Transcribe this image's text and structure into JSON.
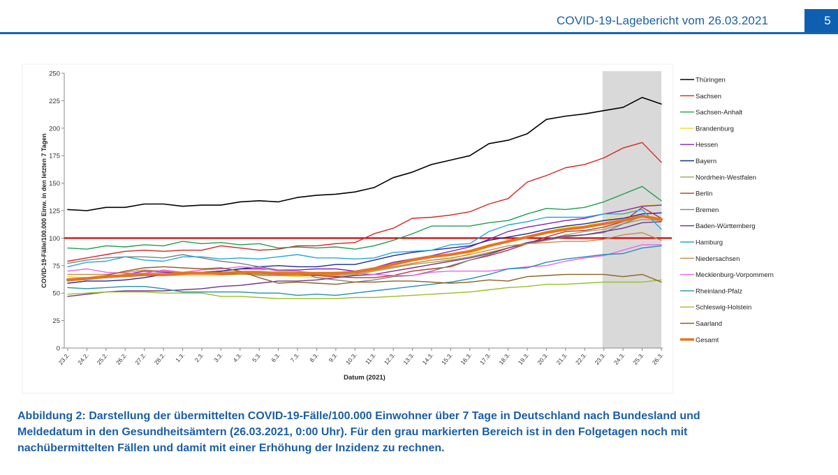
{
  "header": {
    "title": "COVID-19-Lagebericht vom 26.03.2021",
    "page_number": "5"
  },
  "caption": {
    "lines": [
      "Abbildung 2: Darstellung der übermittelten COVID-19-Fälle/100.000 Einwohner über 7 Tage in Deutschland nach Bundesland und",
      "Meldedatum in den Gesundheitsämtern (26.03.2021, 0:00 Uhr). Für den grau markierten Bereich ist in den Folgetagen noch mit",
      "nachübermittelten Fällen und damit mit einer Erhöhung der Inzidenz zu rechnen."
    ]
  },
  "chart_data": {
    "type": "line",
    "title": "",
    "xlabel": "Datum (2021)",
    "ylabel": "COVID-19-Fälle/100.000 Einw. in den letzten 7 Tagen",
    "ylim": [
      0,
      250
    ],
    "yticks": [
      0,
      25,
      50,
      75,
      100,
      125,
      150,
      175,
      200,
      225,
      250
    ],
    "grid": false,
    "legend_position": "right",
    "reference_line": {
      "value": 100,
      "color": "#e00000"
    },
    "shaded_region": {
      "from": "23.3.",
      "to": "26.3.",
      "color": "#d9d9d9",
      "meaning": "incomplete, late reports expected"
    },
    "categories": [
      "23.2.",
      "24.2.",
      "25.2.",
      "26.2.",
      "27.2.",
      "28.2.",
      "1.3.",
      "2.3.",
      "3.3.",
      "4.3.",
      "5.3.",
      "6.3.",
      "7.3.",
      "8.3.",
      "9.3.",
      "10.3.",
      "11.3.",
      "12.3.",
      "13.3.",
      "14.3.",
      "15.3.",
      "16.3.",
      "17.3.",
      "18.3.",
      "19.3.",
      "20.3.",
      "21.3.",
      "22.3.",
      "23.3.",
      "24.3.",
      "25.3.",
      "26.3."
    ],
    "series": [
      {
        "name": "Thüringen",
        "color": "#000000",
        "width": 1.6,
        "values": [
          126,
          125,
          128,
          128,
          131,
          131,
          129,
          130,
          130,
          133,
          134,
          133,
          137,
          139,
          140,
          142,
          146,
          155,
          160,
          167,
          171,
          175,
          186,
          189,
          195,
          208,
          211,
          213,
          216,
          219,
          228,
          222
        ]
      },
      {
        "name": "Sachsen",
        "color": "#e02020",
        "width": 1.4,
        "values": [
          79,
          82,
          85,
          88,
          89,
          88,
          89,
          89,
          93,
          91,
          89,
          90,
          93,
          93,
          95,
          96,
          104,
          109,
          118,
          119,
          121,
          124,
          131,
          136,
          151,
          157,
          164,
          167,
          173,
          182,
          187,
          169
        ]
      },
      {
        "name": "Sachsen-Anhalt",
        "color": "#1aa050",
        "width": 1.4,
        "values": [
          91,
          90,
          93,
          92,
          94,
          93,
          97,
          95,
          96,
          94,
          95,
          91,
          92,
          91,
          92,
          90,
          93,
          98,
          104,
          111,
          111,
          111,
          114,
          116,
          122,
          127,
          126,
          128,
          133,
          140,
          147,
          134
        ]
      },
      {
        "name": "Brandenburg",
        "color": "#f0e040",
        "width": 1.6,
        "values": [
          65,
          64,
          65,
          65,
          66,
          66,
          66,
          66,
          66,
          67,
          67,
          66,
          65,
          64,
          65,
          66,
          70,
          73,
          77,
          80,
          81,
          86,
          92,
          97,
          101,
          106,
          110,
          111,
          116,
          122,
          130,
          130
        ]
      },
      {
        "name": "Hessen",
        "color": "#8020c0",
        "width": 1.4,
        "values": [
          62,
          63,
          64,
          67,
          70,
          69,
          69,
          69,
          70,
          72,
          72,
          71,
          71,
          72,
          72,
          70,
          73,
          78,
          81,
          84,
          88,
          92,
          99,
          106,
          110,
          113,
          116,
          118,
          122,
          125,
          129,
          130
        ]
      },
      {
        "name": "Bayern",
        "color": "#1a2a9a",
        "width": 1.4,
        "values": [
          59,
          61,
          61,
          62,
          64,
          67,
          68,
          69,
          70,
          72,
          74,
          75,
          74,
          74,
          76,
          76,
          80,
          84,
          87,
          89,
          91,
          93,
          98,
          101,
          104,
          108,
          111,
          113,
          116,
          118,
          122,
          123
        ]
      },
      {
        "name": "Nordrhein-Westfalen",
        "color": "#a0a060",
        "width": 1.4,
        "values": [
          62,
          63,
          64,
          66,
          67,
          67,
          68,
          68,
          67,
          67,
          67,
          66,
          66,
          66,
          66,
          67,
          70,
          73,
          76,
          78,
          80,
          83,
          87,
          91,
          95,
          99,
          103,
          106,
          108,
          113,
          117,
          116
        ]
      },
      {
        "name": "Berlin",
        "color": "#c03030",
        "width": 1.4,
        "values": [
          61,
          63,
          64,
          65,
          66,
          66,
          67,
          68,
          67,
          68,
          68,
          67,
          67,
          66,
          65,
          64,
          64,
          66,
          70,
          72,
          74,
          80,
          84,
          89,
          95,
          101,
          106,
          107,
          110,
          115,
          128,
          118
        ]
      },
      {
        "name": "Bremen",
        "color": "#808080",
        "width": 1.4,
        "values": [
          77,
          80,
          82,
          83,
          83,
          82,
          85,
          82,
          79,
          77,
          74,
          71,
          70,
          64,
          62,
          60,
          62,
          65,
          66,
          70,
          75,
          80,
          85,
          91,
          95,
          98,
          101,
          103,
          105,
          113,
          120,
          117
        ]
      },
      {
        "name": "Baden-Württemberg",
        "color": "#703090",
        "width": 1.4,
        "values": [
          47,
          49,
          51,
          52,
          52,
          52,
          53,
          54,
          56,
          57,
          59,
          61,
          61,
          62,
          64,
          66,
          67,
          70,
          73,
          76,
          79,
          82,
          86,
          91,
          96,
          99,
          102,
          103,
          106,
          109,
          114,
          115
        ]
      },
      {
        "name": "Hamburg",
        "color": "#20a8e0",
        "width": 1.4,
        "values": [
          74,
          78,
          79,
          83,
          80,
          79,
          83,
          83,
          81,
          82,
          81,
          83,
          85,
          82,
          82,
          81,
          82,
          87,
          88,
          89,
          94,
          95,
          106,
          112,
          115,
          119,
          119,
          119,
          122,
          122,
          126,
          108
        ]
      },
      {
        "name": "Niedersachsen",
        "color": "#d08848",
        "width": 1.4,
        "values": [
          67,
          67,
          67,
          69,
          71,
          70,
          69,
          69,
          69,
          68,
          66,
          66,
          67,
          67,
          67,
          68,
          71,
          74,
          77,
          80,
          82,
          85,
          89,
          93,
          95,
          96,
          97,
          97,
          99,
          103,
          105,
          98
        ]
      },
      {
        "name": "Mecklenburg-Vorpommern",
        "color": "#f060f0",
        "width": 1.4,
        "values": [
          70,
          72,
          69,
          68,
          68,
          71,
          69,
          71,
          72,
          74,
          73,
          70,
          70,
          68,
          69,
          68,
          67,
          66,
          66,
          69,
          70,
          70,
          70,
          72,
          74,
          75,
          79,
          82,
          84,
          89,
          94,
          94
        ]
      },
      {
        "name": "Rheinland-Pfalz",
        "color": "#2090b0",
        "width": 1.4,
        "values": [
          55,
          54,
          55,
          56,
          56,
          54,
          51,
          51,
          51,
          51,
          50,
          50,
          48,
          49,
          48,
          50,
          52,
          54,
          56,
          58,
          60,
          63,
          67,
          72,
          73,
          78,
          81,
          83,
          85,
          86,
          91,
          93
        ]
      },
      {
        "name": "Schleswig-Holstein",
        "color": "#98c020",
        "width": 1.4,
        "values": [
          49,
          50,
          51,
          51,
          51,
          50,
          50,
          50,
          47,
          47,
          46,
          45,
          45,
          45,
          45,
          46,
          46,
          47,
          48,
          49,
          50,
          51,
          53,
          55,
          56,
          58,
          58,
          59,
          60,
          60,
          60,
          62
        ]
      },
      {
        "name": "Saarland",
        "color": "#8a6020",
        "width": 1.4,
        "values": [
          63,
          64,
          66,
          70,
          73,
          74,
          73,
          72,
          73,
          70,
          64,
          59,
          60,
          59,
          58,
          60,
          60,
          61,
          61,
          60,
          59,
          60,
          62,
          61,
          65,
          66,
          67,
          67,
          67,
          65,
          67,
          60
        ]
      },
      {
        "name": "Gesamt",
        "color": "#e8741c",
        "width": 4,
        "values": [
          62,
          63,
          65,
          66,
          67,
          67,
          68,
          68,
          68,
          69,
          69,
          68,
          68,
          68,
          68,
          69,
          72,
          76,
          80,
          83,
          85,
          88,
          93,
          97,
          101,
          105,
          108,
          110,
          113,
          116,
          120,
          117
        ]
      }
    ]
  }
}
